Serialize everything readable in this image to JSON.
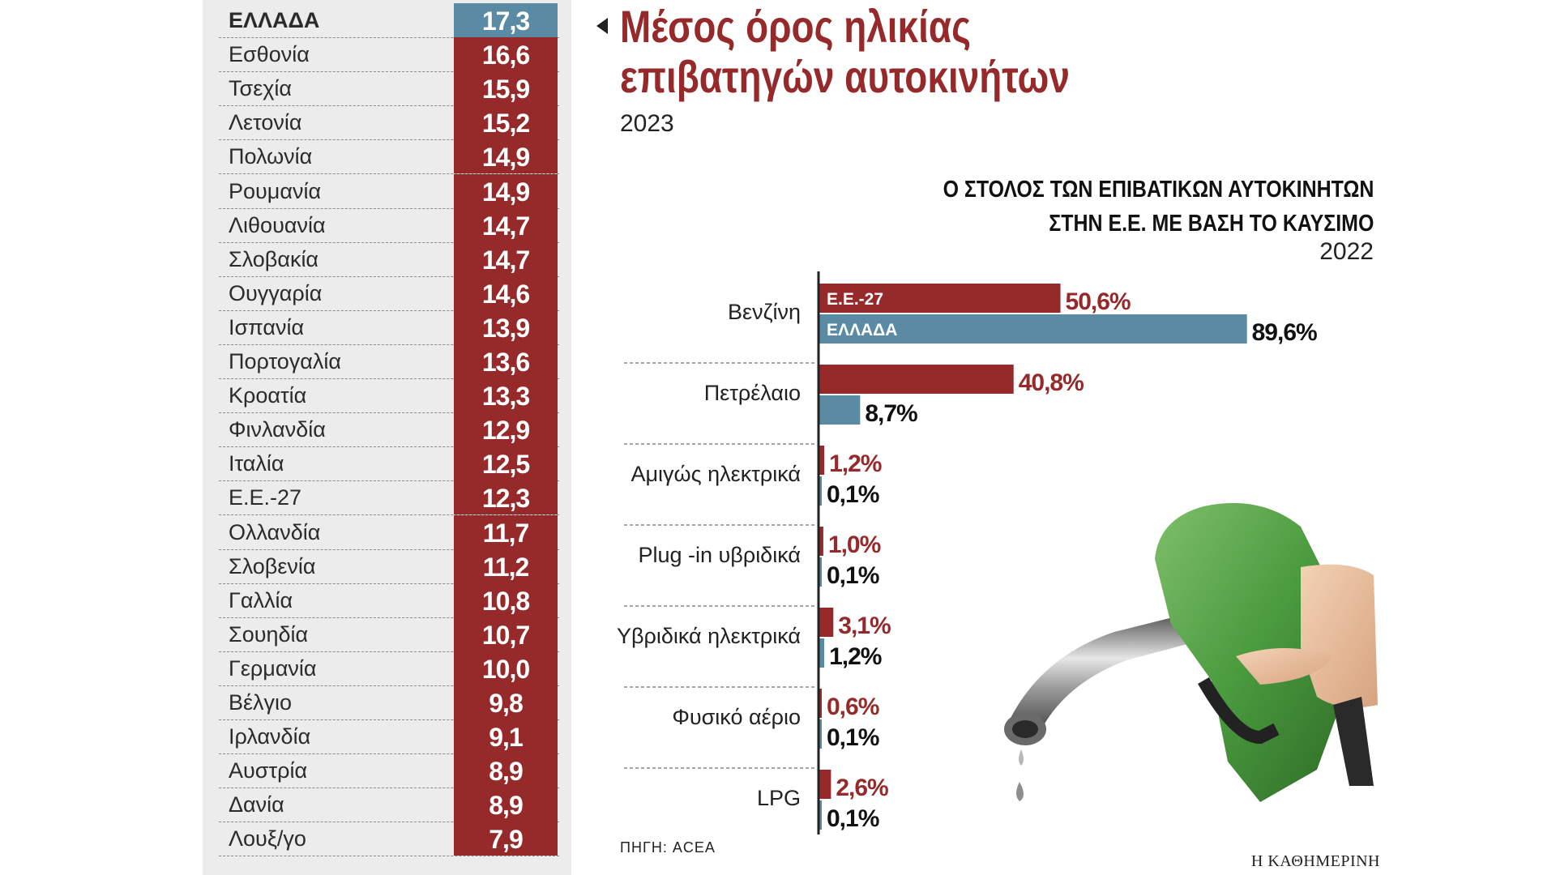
{
  "header": {
    "title_line1": "Μέσος όρος ηλικίας",
    "title_line2": "επιβατηγών αυτοκινήτων",
    "year": "2023"
  },
  "fleet_header": {
    "title_line1": "Ο ΣΤΟΛΟΣ ΤΩΝ ΕΠΙΒΑΤΙΚΩΝ ΑΥΤΟΚΙΝΗΤΩΝ",
    "title_line2": "ΣΤΗΝ Ε.Ε. ΜΕ ΒΑΣΗ ΤΟ ΚΑΥΣΙΜΟ",
    "year": "2022"
  },
  "source": "ΠΗΓΗ: ACEA",
  "brand": "Η ΚΑΘΗΜΕΡΙΝΗ",
  "colors": {
    "eu": "#962a2b",
    "greece": "#5b8ba4",
    "panel": "#ececec"
  },
  "chart_data": [
    {
      "type": "table",
      "title": "Μέσος όρος ηλικίας επιβατηγών αυτοκινήτων",
      "subtitle": "2023",
      "highlight": "ΕΛΛΑΔΑ",
      "rows": [
        {
          "label": "ΕΛΛΑΔΑ",
          "value": "17,3"
        },
        {
          "label": "Εσθονία",
          "value": "16,6"
        },
        {
          "label": "Τσεχία",
          "value": "15,9"
        },
        {
          "label": "Λετονία",
          "value": "15,2"
        },
        {
          "label": "Πολωνία",
          "value": "14,9"
        },
        {
          "label": "Ρουμανία",
          "value": "14,9"
        },
        {
          "label": "Λιθουανία",
          "value": "14,7"
        },
        {
          "label": "Σλοβακία",
          "value": "14,7"
        },
        {
          "label": "Ουγγαρία",
          "value": "14,6"
        },
        {
          "label": "Ισπανία",
          "value": "13,9"
        },
        {
          "label": "Πορτογαλία",
          "value": "13,6"
        },
        {
          "label": "Κροατία",
          "value": "13,3"
        },
        {
          "label": "Φινλανδία",
          "value": "12,9"
        },
        {
          "label": "Ιταλία",
          "value": "12,5"
        },
        {
          "label": "Ε.Ε.-27",
          "value": "12,3"
        },
        {
          "label": "Ολλανδία",
          "value": "11,7"
        },
        {
          "label": "Σλοβενία",
          "value": "11,2"
        },
        {
          "label": "Γαλλία",
          "value": "10,8"
        },
        {
          "label": "Σουηδία",
          "value": "10,7"
        },
        {
          "label": "Γερμανία",
          "value": "10,0"
        },
        {
          "label": "Βέλγιο",
          "value": "9,8"
        },
        {
          "label": "Ιρλανδία",
          "value": "9,1"
        },
        {
          "label": "Αυστρία",
          "value": "8,9"
        },
        {
          "label": "Δανία",
          "value": "8,9"
        },
        {
          "label": "Λουξ/γο",
          "value": "7,9"
        }
      ]
    },
    {
      "type": "bar",
      "orientation": "horizontal",
      "title": "Ο ΣΤΟΛΟΣ ΤΩΝ ΕΠΙΒΑΤΙΚΩΝ ΑΥΤΟΚΙΝΗΤΩΝ ΣΤΗΝ Ε.Ε. ΜΕ ΒΑΣΗ ΤΟ ΚΑΥΣΙΜΟ",
      "subtitle": "2022",
      "categories": [
        "Βενζίνη",
        "Πετρέλαιο",
        "Αμιγώς ηλεκτρικά",
        "Plug -in υβριδικά",
        "Υβριδικά ηλεκτρικά",
        "Φυσικό αέριο",
        "LPG"
      ],
      "series": [
        {
          "name": "Ε.Ε.-27",
          "values": [
            50.6,
            40.8,
            1.2,
            1.0,
            3.1,
            0.6,
            2.6
          ],
          "labels": [
            "50,6%",
            "40,8%",
            "1,2%",
            "1,0%",
            "3,1%",
            "0,6%",
            "2,6%"
          ]
        },
        {
          "name": "ΕΛΛΑΔΑ",
          "values": [
            89.6,
            8.7,
            0.1,
            0.1,
            1.2,
            0.1,
            0.1
          ],
          "labels": [
            "89,6%",
            "8,7%",
            "0,1%",
            "0,1%",
            "1,2%",
            "0,1%",
            "0,1%"
          ]
        }
      ],
      "legend": "inside-first-bars",
      "xlim": [
        0,
        100
      ],
      "grid": false
    }
  ]
}
